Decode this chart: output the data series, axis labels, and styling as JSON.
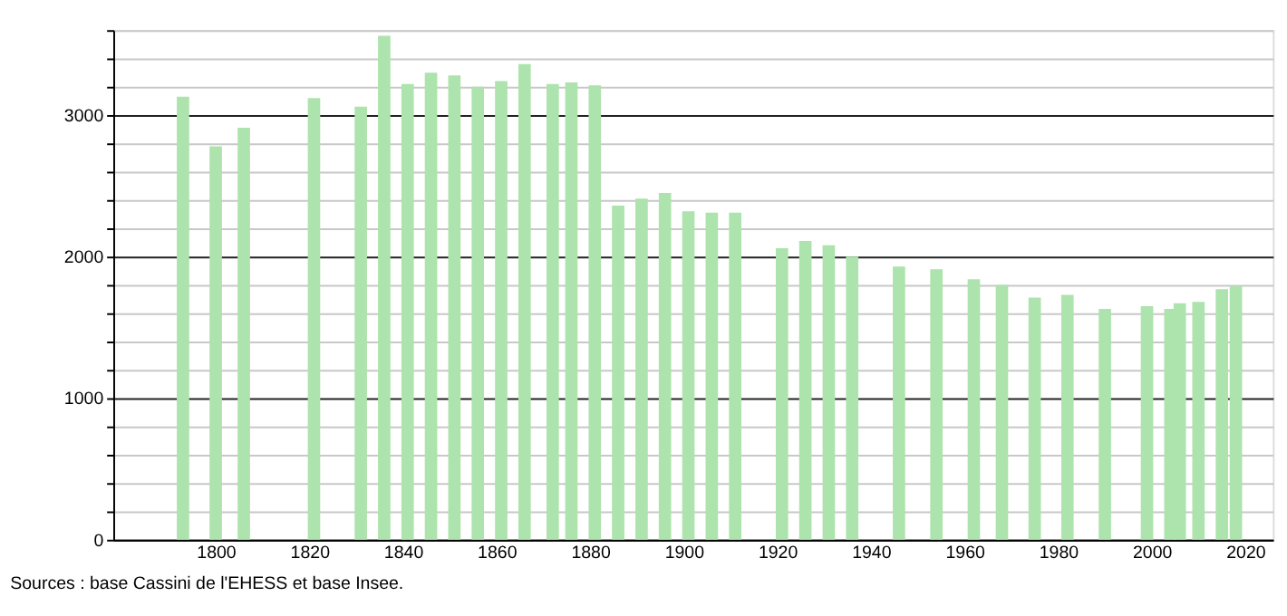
{
  "chart_data": {
    "type": "bar",
    "color": "#ade3ad",
    "x": [
      1793,
      1800,
      1806,
      1821,
      1831,
      1836,
      1841,
      1846,
      1851,
      1856,
      1861,
      1866,
      1872,
      1876,
      1881,
      1886,
      1891,
      1896,
      1901,
      1906,
      1911,
      1921,
      1926,
      1931,
      1936,
      1946,
      1954,
      1962,
      1968,
      1975,
      1982,
      1990,
      1999,
      2004,
      2006,
      2010,
      2015,
      2018
    ],
    "values": [
      3130,
      2780,
      2910,
      3120,
      3060,
      3560,
      3220,
      3300,
      3280,
      3200,
      3240,
      3360,
      3220,
      3230,
      3210,
      2360,
      2410,
      2450,
      2320,
      2310,
      2310,
      2060,
      2110,
      2080,
      2000,
      1930,
      1910,
      1840,
      1800,
      1710,
      1730,
      1630,
      1650,
      1630,
      1670,
      1680,
      1770,
      1790
    ],
    "xlim": [
      1780,
      2024
    ],
    "xticks": [
      1800,
      1820,
      1840,
      1860,
      1880,
      1900,
      1920,
      1940,
      1960,
      1980,
      2000,
      2020
    ],
    "ylim": [
      0,
      3600
    ],
    "yticks": [
      0,
      {
        "value": 200,
        "label": null
      },
      {
        "value": 400,
        "label": null
      },
      {
        "value": 600,
        "label": null
      },
      {
        "value": 800,
        "label": null
      },
      1000,
      {
        "value": 1200,
        "label": null
      },
      {
        "value": 1400,
        "label": null
      },
      {
        "value": 1600,
        "label": null
      },
      {
        "value": 1800,
        "label": null
      },
      2000,
      {
        "value": 2200,
        "label": null
      },
      {
        "value": 2400,
        "label": null
      },
      {
        "value": 2600,
        "label": null
      },
      {
        "value": 2800,
        "label": null
      },
      3000,
      {
        "value": 3200,
        "label": null
      },
      {
        "value": 3400,
        "label": null
      },
      {
        "value": 3600,
        "label": null
      }
    ],
    "grid": "y",
    "annotations": [
      "Sources : base Cassini de l'EHESS et base Insee."
    ]
  }
}
